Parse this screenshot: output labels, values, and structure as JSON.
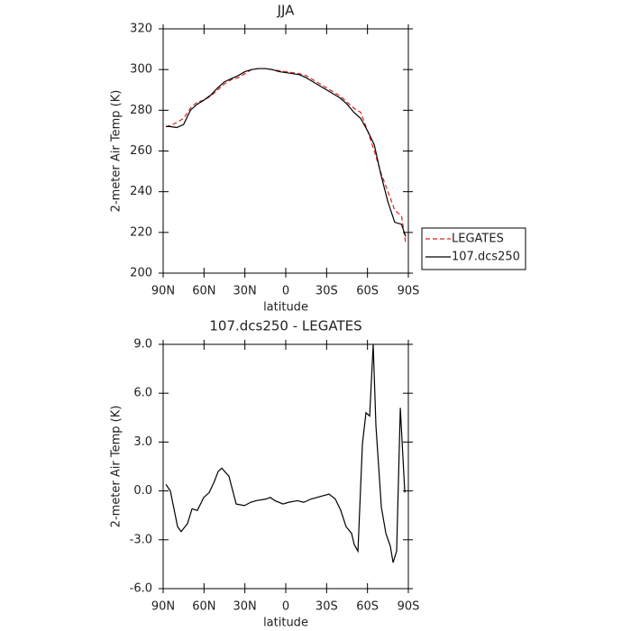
{
  "chart_data": [
    {
      "type": "line",
      "title": "JJA",
      "y_label": "2-meter Air Temp (K)",
      "x_label": "latitude",
      "x": [
        88,
        85,
        80,
        75,
        70,
        65,
        60,
        55,
        50,
        45,
        40,
        35,
        30,
        25,
        20,
        15,
        10,
        5,
        0,
        -5,
        -10,
        -15,
        -20,
        -25,
        -30,
        -35,
        -40,
        -45,
        -50,
        -55,
        -60,
        -65,
        -70,
        -75,
        -80,
        -85,
        -88
      ],
      "series": [
        {
          "name": "LEGATES",
          "color": "#e02020",
          "line_style": "dashed",
          "values": [
            272,
            272.5,
            274,
            276,
            281,
            284,
            285,
            287,
            290,
            293,
            295,
            296,
            298,
            300,
            300.5,
            300.5,
            300,
            299.5,
            299,
            298.5,
            298,
            297,
            295,
            293,
            291,
            289,
            287,
            284,
            281,
            279,
            270,
            260,
            249,
            240,
            231,
            228,
            215
          ]
        },
        {
          "name": "107.dcs250",
          "color": "#000000",
          "line_style": "solid",
          "values": [
            272,
            272,
            271.5,
            273,
            280,
            283,
            285,
            287.5,
            291,
            294,
            295.5,
            297,
            299,
            300,
            300.5,
            300.5,
            300,
            299,
            298.5,
            298,
            297.5,
            296,
            294,
            292,
            290,
            288,
            286,
            283,
            279,
            276,
            270,
            263,
            248,
            235,
            225,
            224,
            218
          ]
        }
      ],
      "xlim": [
        90,
        -90
      ],
      "xticks": [
        {
          "value": 90,
          "label": "90N"
        },
        {
          "value": 60,
          "label": "60N"
        },
        {
          "value": 30,
          "label": "30N"
        },
        0,
        {
          "value": -30,
          "label": "30S"
        },
        {
          "value": -60,
          "label": "60S"
        },
        {
          "value": -90,
          "label": "90S"
        }
      ],
      "ylim": [
        200,
        320
      ],
      "yticks": [
        200,
        220,
        240,
        260,
        280,
        300,
        320
      ],
      "legend": "right",
      "grid": false
    },
    {
      "type": "line",
      "title": "107.dcs250 - LEGATES",
      "y_label": "2-meter Air Temp (K)",
      "x_label": "latitude",
      "x": [
        88,
        84.7,
        79.4,
        76.8,
        72.1,
        68.8,
        64.9,
        60.2,
        56.2,
        52.3,
        49.6,
        47,
        41.7,
        36.4,
        30.4,
        25.8,
        21.8,
        14.6,
        11.3,
        7.9,
        2,
        -2,
        -8.6,
        -13.2,
        -18.5,
        -27.1,
        -31.8,
        -36.4,
        -40.4,
        -44.3,
        -48.3,
        -50.3,
        -53,
        -56.3,
        -58.9,
        -61.6,
        -64.2,
        -66.2,
        -70.2,
        -73.5,
        -76.8,
        -78.8,
        -81.4,
        -84.1,
        -87.4
      ],
      "series": [
        {
          "color": "#000000",
          "line_style": "solid",
          "values": [
            0.4,
            0,
            -2.2,
            -2.5,
            -2,
            -1.1,
            -1.2,
            -0.4,
            -0.1,
            0.6,
            1.2,
            1.4,
            0.9,
            -0.8,
            -0.9,
            -0.7,
            -0.6,
            -0.5,
            -0.4,
            -0.6,
            -0.8,
            -0.7,
            -0.6,
            -0.7,
            -0.5,
            -0.3,
            -0.2,
            -0.5,
            -1.2,
            -2.2,
            -2.6,
            -3.3,
            -3.7,
            2.9,
            4.8,
            4.6,
            9,
            4,
            -1,
            -2.6,
            -3.4,
            -4.4,
            -3.7,
            5.1,
            -0.1
          ]
        }
      ],
      "xlim": [
        90,
        -90
      ],
      "xticks": [
        {
          "value": 90,
          "label": "90N"
        },
        {
          "value": 60,
          "label": "60N"
        },
        {
          "value": 30,
          "label": "30N"
        },
        0,
        {
          "value": -30,
          "label": "30S"
        },
        {
          "value": -60,
          "label": "60S"
        },
        {
          "value": -90,
          "label": "90S"
        }
      ],
      "ylim": [
        -6,
        9
      ],
      "yticks": [
        {
          "value": -6,
          "label": "-6.0"
        },
        {
          "value": -3,
          "label": "-3.0"
        },
        {
          "value": 0,
          "label": "0.0"
        },
        {
          "value": 3,
          "label": "3.0"
        },
        {
          "value": 6,
          "label": "6.0"
        },
        {
          "value": 9,
          "label": "9.0"
        }
      ],
      "grid": false
    }
  ]
}
